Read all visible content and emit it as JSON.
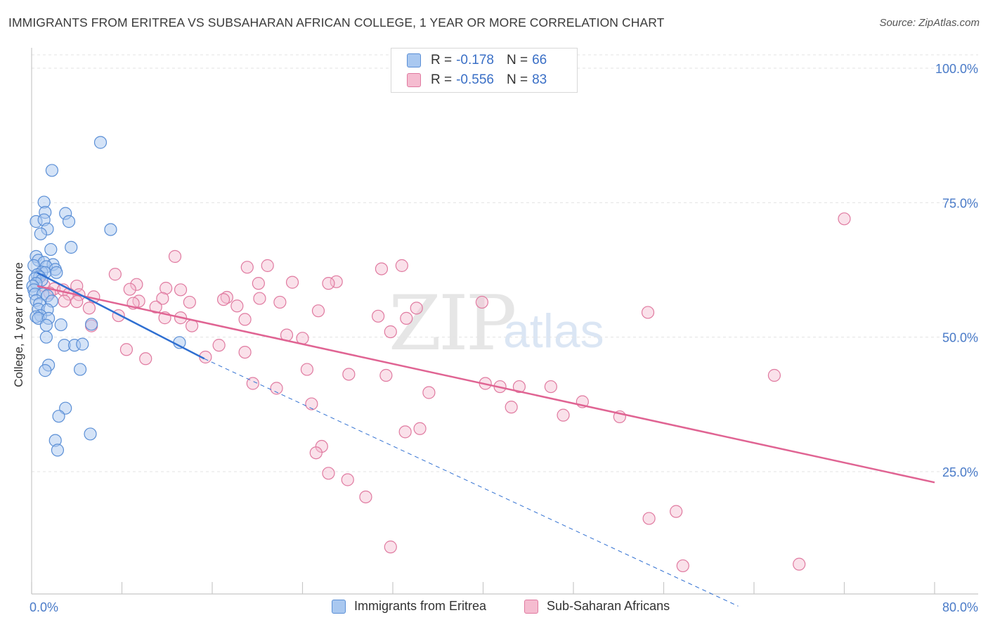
{
  "title": "IMMIGRANTS FROM ERITREA VS SUBSAHARAN AFRICAN COLLEGE, 1 YEAR OR MORE CORRELATION CHART",
  "source": "Source: ZipAtlas.com",
  "watermark": {
    "zip": "ZIP",
    "atlas": "atlas"
  },
  "legend": {
    "rows": [
      {
        "r_label": "R =",
        "r_value": "-0.178",
        "n_label": "N =",
        "n_value": "66"
      },
      {
        "r_label": "R =",
        "r_value": "-0.556",
        "n_label": "N =",
        "n_value": "83"
      }
    ]
  },
  "bottom_legend": {
    "series1": "Immigrants from Eritrea",
    "series2": "Sub-Saharan Africans"
  },
  "colors": {
    "series1_fill": "#a9c8f0",
    "series1_stroke": "#5b8fd6",
    "series1_line": "#2f6fd1",
    "series2_fill": "#f5bcd0",
    "series2_stroke": "#e07aa0",
    "series2_line": "#e06493",
    "grid": "#e3e3e3",
    "tick_text": "#4a7bc8"
  },
  "chart_data": {
    "type": "scatter",
    "title": "IMMIGRANTS FROM ERITREA VS SUBSAHARAN AFRICAN COLLEGE, 1 YEAR OR MORE CORRELATION CHART",
    "xlabel": "",
    "ylabel": "College, 1 year or more",
    "xlim": [
      0,
      80
    ],
    "ylim": [
      0,
      102
    ],
    "x_tick_labels": [
      {
        "value": 0,
        "label": "0.0%"
      },
      {
        "value": 80,
        "label": "80.0%"
      }
    ],
    "y_tick_labels": [
      {
        "value": 100,
        "label": "100.0%"
      },
      {
        "value": 75,
        "label": "75.0%"
      },
      {
        "value": 50,
        "label": "50.0%"
      },
      {
        "value": 25,
        "label": "25.0%"
      }
    ],
    "series": [
      {
        "name": "Immigrants from Eritrea",
        "R": -0.178,
        "N": 66,
        "trend_solid": [
          [
            0.5,
            62.0
          ],
          [
            15.3,
            46.0
          ]
        ],
        "trend_dashed": [
          [
            15.3,
            46.0
          ],
          [
            62.6,
            0.0
          ]
        ],
        "points": [
          [
            6.1,
            86.2
          ],
          [
            1.8,
            81.0
          ],
          [
            1.1,
            75.1
          ],
          [
            0.4,
            71.5
          ],
          [
            1.2,
            73.2
          ],
          [
            3.0,
            73.0
          ],
          [
            3.3,
            71.5
          ],
          [
            1.1,
            71.8
          ],
          [
            1.4,
            70.1
          ],
          [
            0.8,
            69.2
          ],
          [
            7.0,
            70.0
          ],
          [
            1.7,
            66.3
          ],
          [
            3.5,
            66.7
          ],
          [
            0.4,
            65.0
          ],
          [
            0.6,
            64.3
          ],
          [
            1.1,
            63.9
          ],
          [
            1.9,
            63.5
          ],
          [
            0.2,
            63.3
          ],
          [
            1.3,
            63.1
          ],
          [
            2.1,
            62.6
          ],
          [
            0.9,
            62.1
          ],
          [
            1.2,
            62.0
          ],
          [
            0.5,
            61.6
          ],
          [
            0.7,
            61.2
          ],
          [
            0.3,
            60.9
          ],
          [
            0.9,
            60.6
          ],
          [
            2.2,
            62.0
          ],
          [
            0.4,
            60.0
          ],
          [
            0.1,
            59.5
          ],
          [
            0.2,
            58.8
          ],
          [
            0.3,
            58.0
          ],
          [
            1.0,
            58.0
          ],
          [
            1.4,
            57.7
          ],
          [
            1.8,
            56.7
          ],
          [
            0.4,
            56.8
          ],
          [
            0.7,
            56.2
          ],
          [
            0.6,
            55.2
          ],
          [
            1.4,
            55.1
          ],
          [
            0.8,
            54.0
          ],
          [
            0.4,
            53.8
          ],
          [
            0.6,
            53.5
          ],
          [
            1.5,
            53.5
          ],
          [
            1.3,
            52.2
          ],
          [
            2.6,
            52.3
          ],
          [
            5.3,
            52.4
          ],
          [
            1.3,
            50.0
          ],
          [
            13.1,
            49.0
          ],
          [
            2.9,
            48.5
          ],
          [
            3.8,
            48.5
          ],
          [
            4.5,
            48.7
          ],
          [
            1.5,
            44.8
          ],
          [
            1.2,
            43.8
          ],
          [
            4.3,
            44.0
          ],
          [
            3.0,
            36.8
          ],
          [
            2.4,
            35.3
          ],
          [
            5.2,
            32.0
          ],
          [
            2.1,
            30.8
          ],
          [
            2.3,
            29.0
          ]
        ]
      },
      {
        "name": "Sub-Saharan Africans",
        "R": -0.556,
        "N": 83,
        "trend_solid": [
          [
            0.5,
            59.5
          ],
          [
            80.0,
            23.0
          ]
        ],
        "points": [
          [
            72.0,
            72.0
          ],
          [
            12.7,
            65.0
          ],
          [
            19.1,
            63.0
          ],
          [
            20.9,
            63.3
          ],
          [
            31.0,
            62.7
          ],
          [
            32.8,
            63.3
          ],
          [
            7.4,
            61.7
          ],
          [
            23.1,
            60.2
          ],
          [
            27.0,
            60.3
          ],
          [
            20.1,
            60.0
          ],
          [
            26.3,
            60.0
          ],
          [
            9.3,
            59.8
          ],
          [
            11.9,
            59.1
          ],
          [
            4.0,
            59.5
          ],
          [
            1.1,
            59.6
          ],
          [
            2.0,
            59.0
          ],
          [
            2.8,
            58.8
          ],
          [
            8.7,
            58.9
          ],
          [
            13.2,
            58.8
          ],
          [
            1.6,
            58.2
          ],
          [
            3.3,
            58.0
          ],
          [
            4.2,
            57.9
          ],
          [
            5.5,
            57.5
          ],
          [
            11.6,
            57.2
          ],
          [
            17.3,
            57.4
          ],
          [
            20.2,
            57.2
          ],
          [
            14.0,
            56.5
          ],
          [
            17.0,
            57.0
          ],
          [
            2.9,
            56.7
          ],
          [
            4.0,
            56.6
          ],
          [
            9.5,
            56.7
          ],
          [
            9.0,
            56.3
          ],
          [
            22.0,
            56.5
          ],
          [
            39.9,
            56.5
          ],
          [
            5.1,
            55.4
          ],
          [
            11.0,
            55.6
          ],
          [
            18.2,
            55.8
          ],
          [
            34.1,
            55.4
          ],
          [
            25.4,
            54.9
          ],
          [
            54.6,
            54.6
          ],
          [
            7.7,
            54.0
          ],
          [
            30.7,
            53.9
          ],
          [
            11.8,
            53.6
          ],
          [
            13.2,
            53.6
          ],
          [
            33.2,
            53.5
          ],
          [
            18.9,
            53.3
          ],
          [
            5.3,
            52.1
          ],
          [
            14.2,
            52.1
          ],
          [
            31.8,
            51.0
          ],
          [
            22.6,
            50.4
          ],
          [
            24.0,
            49.8
          ],
          [
            16.6,
            48.5
          ],
          [
            8.4,
            47.7
          ],
          [
            18.9,
            47.2
          ],
          [
            10.1,
            46.0
          ],
          [
            15.4,
            46.3
          ],
          [
            24.4,
            44.0
          ],
          [
            28.1,
            43.1
          ],
          [
            31.4,
            42.9
          ],
          [
            65.8,
            42.9
          ],
          [
            40.2,
            41.4
          ],
          [
            41.5,
            40.8
          ],
          [
            43.2,
            40.8
          ],
          [
            46.0,
            40.8
          ],
          [
            19.6,
            41.4
          ],
          [
            21.7,
            40.5
          ],
          [
            35.2,
            39.7
          ],
          [
            24.8,
            37.6
          ],
          [
            42.5,
            37.0
          ],
          [
            48.8,
            38.0
          ],
          [
            47.1,
            35.5
          ],
          [
            52.1,
            35.2
          ],
          [
            34.4,
            33.0
          ],
          [
            33.1,
            32.4
          ],
          [
            25.7,
            29.7
          ],
          [
            25.2,
            28.5
          ],
          [
            26.3,
            24.7
          ],
          [
            28.0,
            23.5
          ],
          [
            29.6,
            20.3
          ],
          [
            54.7,
            16.3
          ],
          [
            57.1,
            17.6
          ],
          [
            31.8,
            11.0
          ],
          [
            57.7,
            7.5
          ],
          [
            68.0,
            7.8
          ]
        ]
      }
    ]
  }
}
